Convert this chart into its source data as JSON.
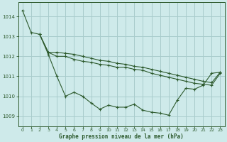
{
  "title": "Graphe pression niveau de la mer (hPa)",
  "background_color": "#ceeaea",
  "grid_color": "#a8cccc",
  "line_color": "#2d5a2d",
  "xlim": [
    -0.5,
    23.5
  ],
  "ylim": [
    1008.5,
    1014.7
  ],
  "yticks": [
    1009,
    1010,
    1011,
    1012,
    1013,
    1014
  ],
  "xticks": [
    0,
    1,
    2,
    3,
    4,
    5,
    6,
    7,
    8,
    9,
    10,
    11,
    12,
    13,
    14,
    15,
    16,
    17,
    18,
    19,
    20,
    21,
    22,
    23
  ],
  "line1_x": [
    0,
    1,
    2,
    3,
    4,
    5,
    6,
    7,
    8,
    9,
    10,
    11,
    12,
    13,
    14,
    15,
    16,
    17,
    18,
    19,
    20,
    21,
    22,
    23
  ],
  "line1_y": [
    1014.3,
    1013.2,
    1013.1,
    1012.1,
    1011.0,
    1010.0,
    1010.2,
    1010.0,
    1009.65,
    1009.35,
    1009.55,
    1009.45,
    1009.45,
    1009.6,
    1009.3,
    1009.2,
    1009.15,
    1009.05,
    1009.8,
    1010.4,
    1010.35,
    1010.55,
    1011.15,
    1011.2
  ],
  "line2_x": [
    2,
    3,
    4,
    5,
    6,
    7,
    8,
    9,
    10,
    11,
    12,
    13,
    14,
    15,
    16,
    17,
    18,
    19,
    20,
    21,
    22,
    23
  ],
  "line2_y": [
    1013.1,
    1012.2,
    1012.0,
    1012.0,
    1011.85,
    1011.75,
    1011.7,
    1011.6,
    1011.55,
    1011.45,
    1011.45,
    1011.35,
    1011.3,
    1011.15,
    1011.05,
    1010.95,
    1010.85,
    1010.75,
    1010.65,
    1010.6,
    1010.55,
    1011.15
  ],
  "line3_x": [
    2,
    3,
    4,
    5,
    6,
    7,
    8,
    9,
    10,
    11,
    12,
    13,
    14,
    15,
    16,
    17,
    18,
    19,
    20,
    21,
    22,
    23
  ],
  "line3_y": [
    1013.1,
    1012.2,
    1012.2,
    1012.15,
    1012.1,
    1012.0,
    1011.9,
    1011.8,
    1011.75,
    1011.65,
    1011.6,
    1011.5,
    1011.45,
    1011.35,
    1011.25,
    1011.15,
    1011.05,
    1010.95,
    1010.85,
    1010.75,
    1010.68,
    1011.2
  ]
}
